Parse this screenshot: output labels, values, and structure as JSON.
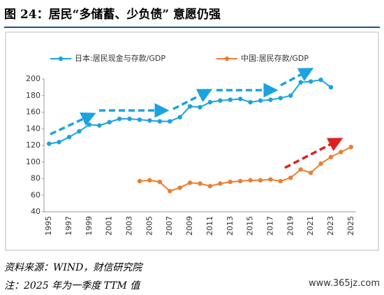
{
  "header": {
    "title": "图 24：居民“多储蓄、少负债” 意愿仍强"
  },
  "chart_data": {
    "type": "line",
    "categories": [
      "1995",
      null,
      "1997",
      null,
      "1999",
      null,
      "2001",
      null,
      "2003",
      null,
      "2005",
      null,
      "2007",
      null,
      "2009",
      null,
      "2011",
      null,
      "2013",
      null,
      "2015",
      null,
      "2017",
      null,
      "2019",
      null,
      "2021",
      null,
      "2023",
      null,
      "2025"
    ],
    "series": [
      {
        "name": "日本:居民现金与存款/GDP",
        "color": "#1aa3e0",
        "values": [
          122,
          124,
          130,
          137,
          145,
          144,
          148,
          152,
          152,
          151,
          150,
          149,
          149,
          154,
          167,
          166,
          172,
          174,
          175,
          176,
          172,
          174,
          175,
          177,
          180,
          196,
          197,
          199,
          190,
          null,
          null
        ]
      },
      {
        "name": "中国:居民存款/GDP",
        "color": "#ed7d31",
        "values": [
          null,
          null,
          null,
          null,
          null,
          null,
          null,
          null,
          null,
          77,
          78,
          76,
          65,
          69,
          75,
          74,
          71,
          74,
          76,
          77,
          78,
          78,
          79,
          77,
          81,
          91,
          87,
          98,
          106,
          112,
          118
        ]
      }
    ],
    "ylim": [
      40,
      200
    ],
    "yticks": [
      40,
      60,
      80,
      100,
      120,
      140,
      160,
      180,
      200
    ],
    "grid": false
  },
  "footer": {
    "source": "资料来源：WIND，财信研究院",
    "note": "注：2025 年为一季度 TTM 值",
    "watermark": "www.365jz.com"
  }
}
